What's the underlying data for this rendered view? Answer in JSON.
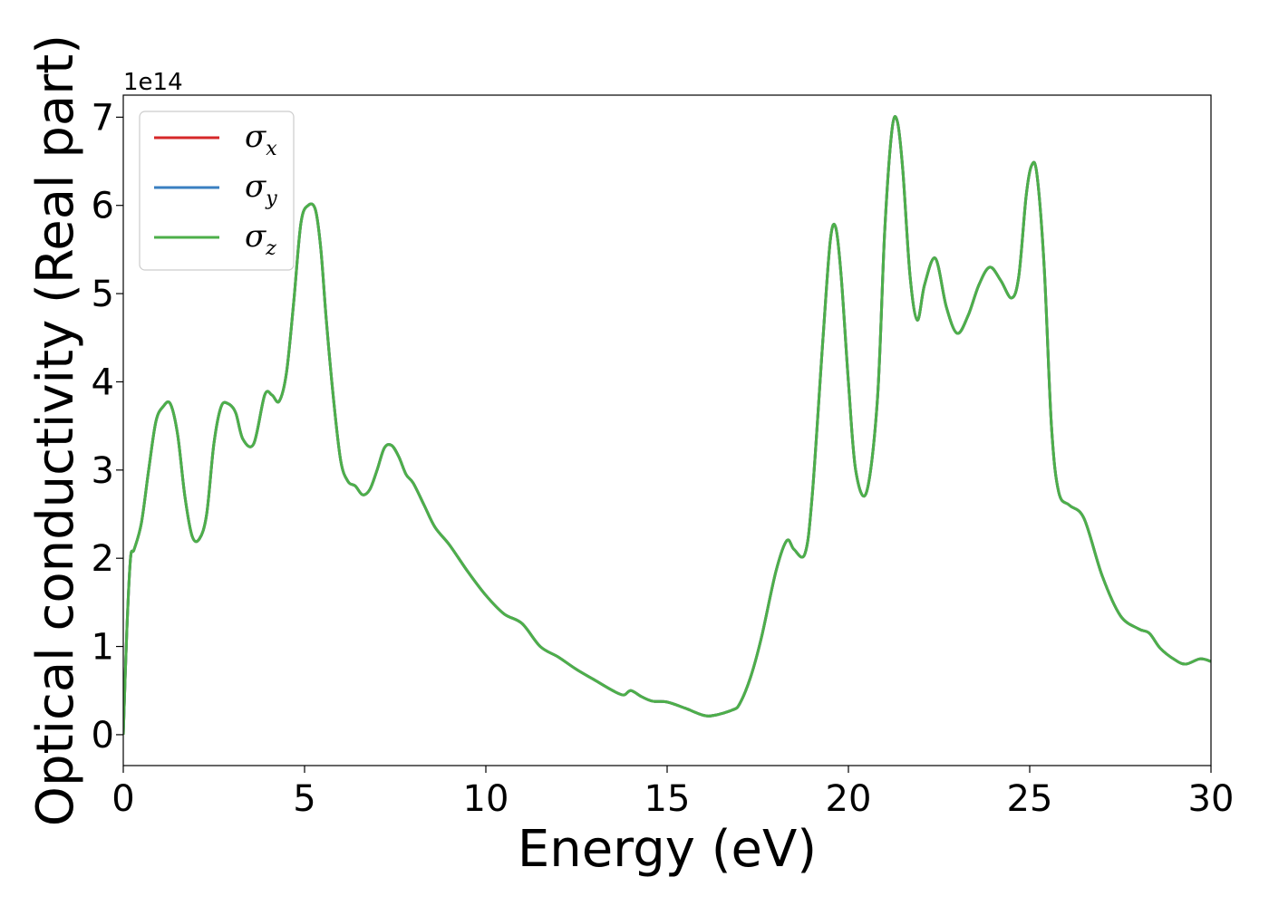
{
  "chart_data": {
    "type": "line",
    "xlabel": "Energy (eV)",
    "ylabel": "Optical conductivity (Real part)",
    "y_offset_label": "1e14",
    "xlim": [
      0,
      30
    ],
    "ylim": [
      -0.35,
      7.25
    ],
    "x_ticks": [
      0,
      5,
      10,
      15,
      20,
      25,
      30
    ],
    "y_ticks": [
      0,
      1,
      2,
      3,
      4,
      5,
      6,
      7
    ],
    "grid": false,
    "legend_position": "upper-left",
    "colors": {
      "sigma_x": "#d62728",
      "sigma_y": "#3a7fc1",
      "sigma_z": "#4daf4a"
    },
    "series": [
      {
        "name": "σx",
        "symbol": "σ",
        "subscript": "x",
        "color": "#d62728",
        "ref": "shared"
      },
      {
        "name": "σy",
        "symbol": "σ",
        "subscript": "y",
        "color": "#3a7fc1",
        "ref": "shared"
      },
      {
        "name": "σz",
        "symbol": "σ",
        "subscript": "z",
        "color": "#4daf4a",
        "ref": "shared"
      }
    ],
    "shared_curve": {
      "x": [
        0,
        0.1,
        0.2,
        0.3,
        0.5,
        0.7,
        0.9,
        1.1,
        1.3,
        1.5,
        1.7,
        1.9,
        2.1,
        2.3,
        2.5,
        2.7,
        2.9,
        3.1,
        3.3,
        3.6,
        3.9,
        4.1,
        4.3,
        4.5,
        4.7,
        4.9,
        5.1,
        5.3,
        5.45,
        5.6,
        5.8,
        6.0,
        6.2,
        6.4,
        6.6,
        6.8,
        7.0,
        7.2,
        7.4,
        7.6,
        7.8,
        8.0,
        8.3,
        8.6,
        9.0,
        9.5,
        10.0,
        10.5,
        11.0,
        11.5,
        12.0,
        12.5,
        13.0,
        13.5,
        13.8,
        14.0,
        14.3,
        14.6,
        15.0,
        15.5,
        16.0,
        16.3,
        16.8,
        17.0,
        17.3,
        17.6,
        18.0,
        18.3,
        18.5,
        18.8,
        19.0,
        19.3,
        19.5,
        19.65,
        19.8,
        20.0,
        20.2,
        20.5,
        20.8,
        21.0,
        21.2,
        21.35,
        21.5,
        21.7,
        21.9,
        22.1,
        22.4,
        22.7,
        23.0,
        23.3,
        23.6,
        23.9,
        24.2,
        24.5,
        24.7,
        24.9,
        25.05,
        25.2,
        25.4,
        25.6,
        25.8,
        26.1,
        26.5,
        27.0,
        27.5,
        28.0,
        28.3,
        28.6,
        29.0,
        29.3,
        29.7,
        30.0
      ],
      "y": [
        0,
        1.2,
        2.0,
        2.1,
        2.4,
        3.0,
        3.55,
        3.72,
        3.75,
        3.4,
        2.7,
        2.25,
        2.22,
        2.5,
        3.3,
        3.72,
        3.75,
        3.65,
        3.35,
        3.3,
        3.85,
        3.85,
        3.78,
        4.1,
        4.9,
        5.8,
        6.0,
        5.95,
        5.5,
        4.7,
        3.8,
        3.1,
        2.87,
        2.82,
        2.72,
        2.78,
        3.0,
        3.25,
        3.28,
        3.15,
        2.95,
        2.85,
        2.6,
        2.35,
        2.15,
        1.85,
        1.58,
        1.37,
        1.26,
        1.0,
        0.88,
        0.74,
        0.62,
        0.5,
        0.45,
        0.5,
        0.43,
        0.38,
        0.37,
        0.3,
        0.22,
        0.22,
        0.28,
        0.35,
        0.65,
        1.1,
        1.85,
        2.2,
        2.1,
        2.05,
        2.7,
        4.5,
        5.6,
        5.75,
        5.2,
        4.0,
        3.0,
        2.75,
        3.8,
        5.7,
        6.85,
        6.95,
        6.4,
        5.2,
        4.7,
        5.1,
        5.4,
        4.85,
        4.55,
        4.75,
        5.1,
        5.3,
        5.15,
        4.95,
        5.2,
        6.1,
        6.45,
        6.35,
        5.3,
        3.5,
        2.75,
        2.6,
        2.45,
        1.8,
        1.35,
        1.2,
        1.15,
        0.98,
        0.85,
        0.8,
        0.86,
        0.83
      ]
    }
  }
}
